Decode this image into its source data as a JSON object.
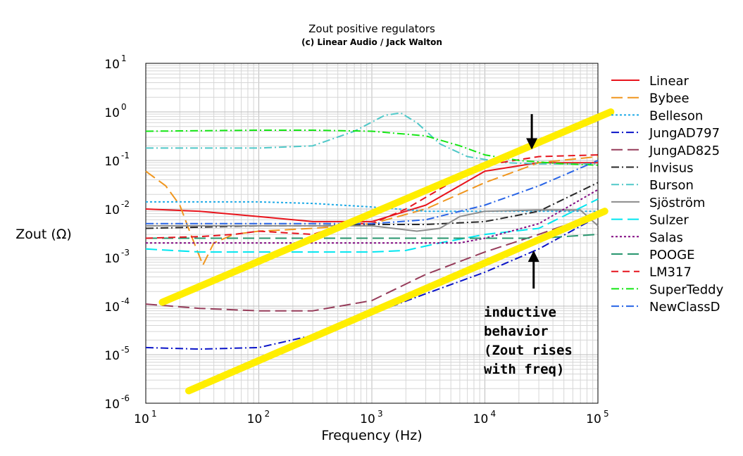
{
  "chart_data": {
    "type": "line",
    "title": "Zout positive regulators",
    "subtitle": "(c) Linear Audio / Jack Walton",
    "xlabel": "Frequency (Hz)",
    "ylabel": "Zout (Ω)",
    "xscale": "log",
    "yscale": "log",
    "xlim": [
      10,
      100000
    ],
    "ylim": [
      1e-06,
      10
    ],
    "x_ticks": [
      {
        "base": "10",
        "exp": "1"
      },
      {
        "base": "10",
        "exp": "2"
      },
      {
        "base": "10",
        "exp": "3"
      },
      {
        "base": "10",
        "exp": "4"
      },
      {
        "base": "10",
        "exp": "5"
      }
    ],
    "y_ticks": [
      {
        "base": "10",
        "exp": "-6"
      },
      {
        "base": "10",
        "exp": "-5"
      },
      {
        "base": "10",
        "exp": "-4"
      },
      {
        "base": "10",
        "exp": "-3"
      },
      {
        "base": "10",
        "exp": "-2"
      },
      {
        "base": "10",
        "exp": "-1"
      },
      {
        "base": "10",
        "exp": "0"
      },
      {
        "base": "10",
        "exp": "1"
      }
    ],
    "grid": true,
    "legend_position": "right",
    "series": [
      {
        "name": "Linear",
        "color": "#e8141c",
        "dash": "solid",
        "points": [
          [
            10,
            0.01
          ],
          [
            30,
            0.009
          ],
          [
            100,
            0.007
          ],
          [
            300,
            0.0055
          ],
          [
            1000,
            0.0055
          ],
          [
            3000,
            0.012
          ],
          [
            10000,
            0.06
          ],
          [
            30000,
            0.09
          ],
          [
            100000,
            0.09
          ]
        ]
      },
      {
        "name": "Bybee",
        "color": "#f0961e",
        "dash": "long-dash",
        "points": [
          [
            10,
            0.06
          ],
          [
            15,
            0.03
          ],
          [
            20,
            0.012
          ],
          [
            25,
            0.003
          ],
          [
            32,
            0.0007
          ],
          [
            40,
            0.002
          ],
          [
            60,
            0.003
          ],
          [
            100,
            0.0035
          ],
          [
            300,
            0.004
          ],
          [
            1000,
            0.005
          ],
          [
            3000,
            0.01
          ],
          [
            10000,
            0.035
          ],
          [
            30000,
            0.09
          ],
          [
            100000,
            0.12
          ]
        ]
      },
      {
        "name": "Belleson",
        "color": "#1eaae6",
        "dash": "dot",
        "points": [
          [
            10,
            0.014
          ],
          [
            100,
            0.014
          ],
          [
            300,
            0.013
          ],
          [
            1000,
            0.011
          ],
          [
            3000,
            0.009
          ],
          [
            10000,
            0.009
          ],
          [
            30000,
            0.009
          ],
          [
            100000,
            0.009
          ]
        ]
      },
      {
        "name": "JungAD797",
        "color": "#0a14c8",
        "dash": "dash-dot",
        "points": [
          [
            10,
            1.4e-05
          ],
          [
            30,
            1.3e-05
          ],
          [
            100,
            1.4e-05
          ],
          [
            300,
            2.5e-05
          ],
          [
            1000,
            7e-05
          ],
          [
            3000,
            0.00018
          ],
          [
            10000,
            0.0005
          ],
          [
            30000,
            0.0015
          ],
          [
            100000,
            0.007
          ]
        ]
      },
      {
        "name": "JungAD825",
        "color": "#963c5a",
        "dash": "long-dash",
        "points": [
          [
            10,
            0.00011
          ],
          [
            30,
            9e-05
          ],
          [
            100,
            8e-05
          ],
          [
            300,
            8e-05
          ],
          [
            1000,
            0.00013
          ],
          [
            3000,
            0.00045
          ],
          [
            10000,
            0.0013
          ],
          [
            30000,
            0.003
          ],
          [
            100000,
            0.008
          ]
        ]
      },
      {
        "name": "Invisus",
        "color": "#282828",
        "dash": "dash-dot",
        "points": [
          [
            10,
            0.004
          ],
          [
            100,
            0.0045
          ],
          [
            300,
            0.0045
          ],
          [
            1000,
            0.0048
          ],
          [
            3000,
            0.0048
          ],
          [
            10000,
            0.0055
          ],
          [
            30000,
            0.009
          ],
          [
            100000,
            0.035
          ]
        ]
      },
      {
        "name": "Burson",
        "color": "#50c8c8",
        "dash": "dash-dot",
        "points": [
          [
            10,
            0.18
          ],
          [
            100,
            0.18
          ],
          [
            300,
            0.2
          ],
          [
            700,
            0.4
          ],
          [
            1300,
            0.85
          ],
          [
            1800,
            0.95
          ],
          [
            2500,
            0.6
          ],
          [
            4000,
            0.22
          ],
          [
            7000,
            0.12
          ],
          [
            15000,
            0.09
          ],
          [
            30000,
            0.085
          ],
          [
            100000,
            0.085
          ]
        ]
      },
      {
        "name": "Sjöström",
        "color": "#8c8c8c",
        "dash": "solid",
        "points": [
          [
            10,
            0.0045
          ],
          [
            100,
            0.0045
          ],
          [
            1000,
            0.0045
          ],
          [
            2500,
            0.0035
          ],
          [
            4000,
            0.004
          ],
          [
            6000,
            0.007
          ],
          [
            10000,
            0.009
          ],
          [
            30000,
            0.0095
          ],
          [
            70000,
            0.0095
          ],
          [
            100000,
            0.0045
          ]
        ]
      },
      {
        "name": "Sulzer",
        "color": "#00e6f0",
        "dash": "long-dash",
        "points": [
          [
            10,
            0.0015
          ],
          [
            30,
            0.0013
          ],
          [
            100,
            0.0013
          ],
          [
            300,
            0.0013
          ],
          [
            1000,
            0.0013
          ],
          [
            2000,
            0.0014
          ],
          [
            4000,
            0.002
          ],
          [
            10000,
            0.003
          ],
          [
            30000,
            0.004
          ],
          [
            100000,
            0.016
          ]
        ]
      },
      {
        "name": "Salas",
        "color": "#820a82",
        "dash": "dot",
        "points": [
          [
            10,
            0.002
          ],
          [
            100,
            0.002
          ],
          [
            1000,
            0.002
          ],
          [
            3000,
            0.002
          ],
          [
            6000,
            0.002
          ],
          [
            10000,
            0.0025
          ],
          [
            30000,
            0.005
          ],
          [
            100000,
            0.025
          ]
        ]
      },
      {
        "name": "POOGE",
        "color": "#28966e",
        "dash": "long-dash",
        "points": [
          [
            10,
            0.0025
          ],
          [
            100,
            0.0025
          ],
          [
            1000,
            0.0025
          ],
          [
            10000,
            0.0025
          ],
          [
            30000,
            0.0025
          ],
          [
            100000,
            0.003
          ]
        ]
      },
      {
        "name": "LM317",
        "color": "#e6141e",
        "dash": "dash",
        "points": [
          [
            10,
            0.0025
          ],
          [
            30,
            0.0027
          ],
          [
            60,
            0.003
          ],
          [
            100,
            0.0035
          ],
          [
            300,
            0.003
          ],
          [
            600,
            0.005
          ],
          [
            1000,
            0.005
          ],
          [
            2000,
            0.01
          ],
          [
            5000,
            0.035
          ],
          [
            10000,
            0.08
          ],
          [
            30000,
            0.12
          ],
          [
            100000,
            0.13
          ]
        ]
      },
      {
        "name": "SuperTeddy",
        "color": "#14e614",
        "dash": "dash-dot",
        "points": [
          [
            10,
            0.4
          ],
          [
            100,
            0.42
          ],
          [
            300,
            0.42
          ],
          [
            1000,
            0.4
          ],
          [
            3000,
            0.32
          ],
          [
            6000,
            0.2
          ],
          [
            10000,
            0.13
          ],
          [
            20000,
            0.1
          ],
          [
            50000,
            0.085
          ],
          [
            100000,
            0.08
          ]
        ]
      },
      {
        "name": "NewClassD",
        "color": "#2864e6",
        "dash": "dash-dot",
        "points": [
          [
            10,
            0.005
          ],
          [
            100,
            0.005
          ],
          [
            300,
            0.005
          ],
          [
            1000,
            0.005
          ],
          [
            3000,
            0.006
          ],
          [
            10000,
            0.012
          ],
          [
            30000,
            0.03
          ],
          [
            100000,
            0.1
          ]
        ]
      }
    ],
    "trend_lines": [
      {
        "color": "#ffee00",
        "points": [
          [
            14,
            0.00012
          ],
          [
            130000,
            1.0
          ]
        ]
      },
      {
        "color": "#ffee00",
        "points": [
          [
            24,
            1.8e-06
          ],
          [
            115000,
            0.009
          ]
        ]
      }
    ],
    "annotations": [
      {
        "text_lines": [
          "inductive",
          "behavior",
          "(Zout rises",
          "with freq)"
        ],
        "position": "bottom-right"
      }
    ],
    "arrows": [
      {
        "direction": "down",
        "at_x": 26000,
        "from_y": 0.9,
        "to_y": 0.18
      },
      {
        "direction": "up",
        "at_x": 27000,
        "from_y": 0.00023,
        "to_y": 0.0013
      }
    ]
  }
}
